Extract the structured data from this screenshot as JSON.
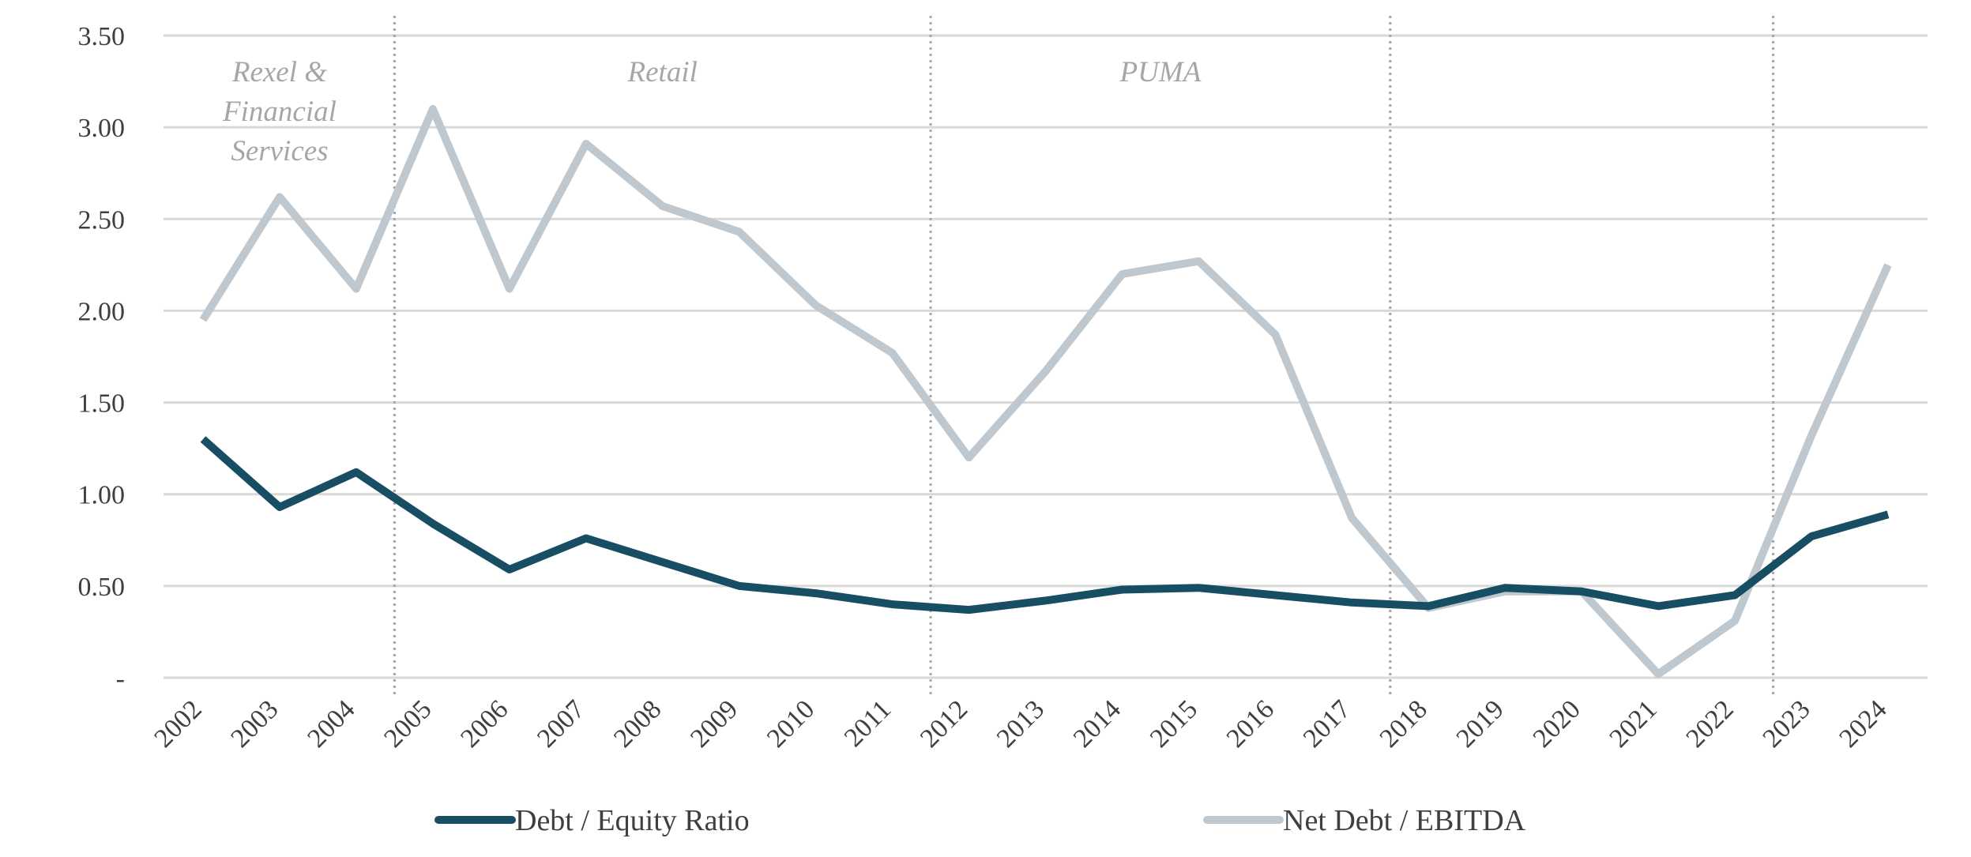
{
  "chart_data": {
    "type": "line",
    "title": "",
    "xlabel": "",
    "ylabel": "",
    "ylim": [
      0,
      3.5
    ],
    "y_ticks": [
      {
        "value": 0,
        "label": "-"
      },
      {
        "value": 0.5,
        "label": "0.50"
      },
      {
        "value": 1.0,
        "label": "1.00"
      },
      {
        "value": 1.5,
        "label": "1.50"
      },
      {
        "value": 2.0,
        "label": "2.00"
      },
      {
        "value": 2.5,
        "label": "2.50"
      },
      {
        "value": 3.0,
        "label": "3.00"
      },
      {
        "value": 3.5,
        "label": "3.50"
      }
    ],
    "grid": true,
    "categories": [
      "2002",
      "2003",
      "2004",
      "2005",
      "2006",
      "2007",
      "2008",
      "2009",
      "2010",
      "2011",
      "2012",
      "2013",
      "2014",
      "2015",
      "2016",
      "2017",
      "2018",
      "2019",
      "2020",
      "2021",
      "2022",
      "2023",
      "2024"
    ],
    "series": [
      {
        "name": "Debt / Equity Ratio",
        "color": "#174e64",
        "values": [
          1.3,
          0.93,
          1.12,
          0.84,
          0.59,
          0.76,
          0.63,
          0.5,
          0.46,
          0.4,
          0.37,
          0.42,
          0.48,
          0.49,
          0.45,
          0.41,
          0.39,
          0.49,
          0.47,
          0.39,
          0.45,
          0.77,
          0.89
        ]
      },
      {
        "name": "Net Debt / EBITDA",
        "color": "#bfc8cf",
        "values": [
          1.95,
          2.62,
          2.12,
          3.1,
          2.12,
          2.91,
          2.57,
          2.43,
          2.03,
          1.77,
          1.2,
          1.67,
          2.2,
          2.27,
          1.87,
          0.87,
          0.38,
          0.47,
          0.47,
          0.02,
          0.31,
          1.32,
          2.25
        ]
      }
    ],
    "era_dividers_after": [
      "2004",
      "2011",
      "2017",
      "2022"
    ],
    "era_labels": [
      {
        "text": "Rexel & Financial Services",
        "lines": [
          "Rexel &",
          "Financial",
          "Services"
        ],
        "from": "2002",
        "to": "2004"
      },
      {
        "text": "Retail",
        "lines": [
          "Retail"
        ],
        "from": "2005",
        "to": "2011"
      },
      {
        "text": "PUMA",
        "lines": [
          "PUMA"
        ],
        "from": "2012",
        "to": "2017"
      }
    ],
    "legend_position": "bottom"
  }
}
